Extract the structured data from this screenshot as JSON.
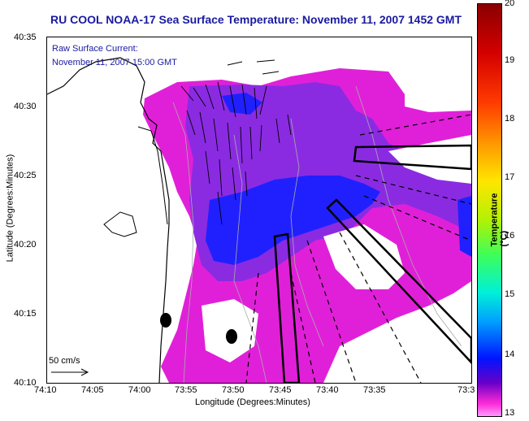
{
  "title": "RU COOL  NOAA-17  Sea Surface Temperature:  November 11, 2007 1452 GMT",
  "annotation": {
    "line1": "Raw Surface Current:",
    "line2": "November 11, 2007 15:00 GMT"
  },
  "scale_label": "50 cm/s",
  "axes": {
    "xlabel": "Longitude (Degrees:Minutes)",
    "ylabel": "Latitude (Degrees:Minutes)",
    "xticks": [
      "74:10",
      "74:05",
      "74:00",
      "73:55",
      "73:50",
      "73:45",
      "73:40",
      "73:35",
      "73:3"
    ],
    "yticks": [
      "40:35",
      "40:30",
      "40:25",
      "40:20",
      "40:15",
      "40:10"
    ]
  },
  "colorbar": {
    "title": "Temperature (°C)",
    "labels": [
      "20",
      "19",
      "18",
      "17",
      "16",
      "15",
      "14",
      "13"
    ]
  },
  "colors": {
    "title_blue": "#1a1aa0",
    "sst_magenta": "#e020d8",
    "sst_violet": "#8a2be2",
    "sst_blue": "#2020ff"
  }
}
